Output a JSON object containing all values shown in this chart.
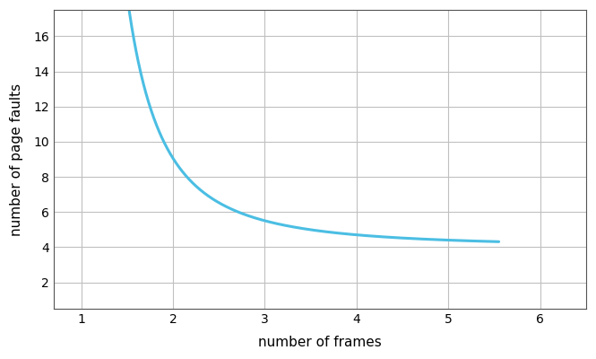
{
  "xlabel": "number of frames",
  "ylabel": "number of page faults",
  "xlim": [
    0.7,
    6.5
  ],
  "ylim": [
    0.5,
    17.5
  ],
  "xticks": [
    1,
    2,
    3,
    4,
    5,
    6
  ],
  "yticks": [
    2,
    4,
    6,
    8,
    10,
    12,
    14,
    16
  ],
  "line_color": "#4BBEE3",
  "line_width": 2.2,
  "grid_color": "#C0C0C0",
  "background_color": "#FFFFFF",
  "curve_x_start": 0.84,
  "curve_x_end": 5.55,
  "curve_asymptote": 4.0,
  "curve_x_offset": 0.72,
  "curve_scale": 8.5,
  "curve_decay": 2.1
}
